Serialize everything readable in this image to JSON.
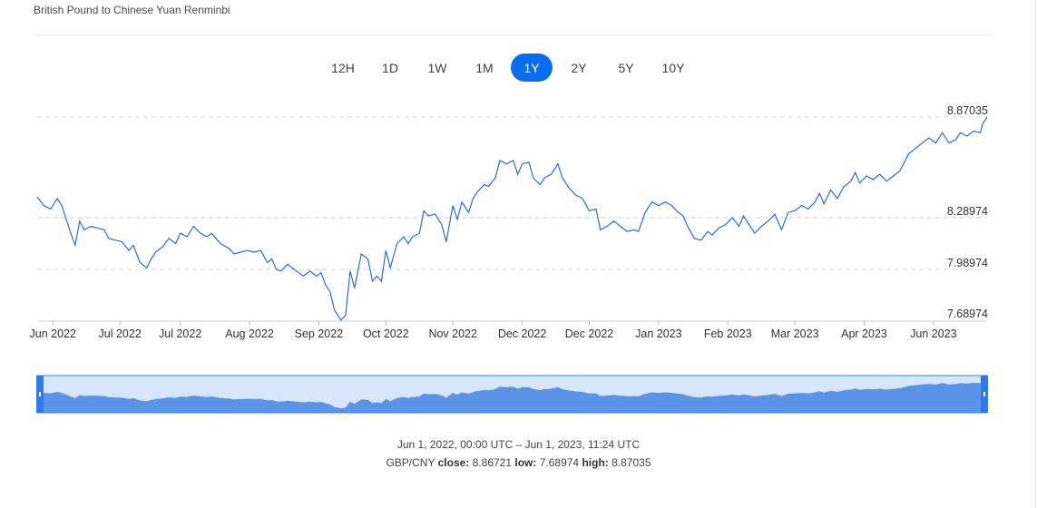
{
  "header": {
    "title": "British Pound to Chinese Yuan Renminbi"
  },
  "range_tabs": [
    {
      "label": "12H",
      "active": false
    },
    {
      "label": "1D",
      "active": false
    },
    {
      "label": "1W",
      "active": false
    },
    {
      "label": "1M",
      "active": false
    },
    {
      "label": "1Y",
      "active": true
    },
    {
      "label": "2Y",
      "active": false
    },
    {
      "label": "5Y",
      "active": false
    },
    {
      "label": "10Y",
      "active": false
    }
  ],
  "colors": {
    "accent": "#0a6cf0",
    "line": "#2b6cd4",
    "navigator_fill": "#5b93e8",
    "navigator_bg": "#d7e6fb"
  },
  "chart_data": {
    "type": "line",
    "series": [
      {
        "name": "GBP/CNY"
      }
    ],
    "y_ticks": [
      "7.68974",
      "7.98974",
      "8.28974",
      "8.87035"
    ],
    "y_tick_values": [
      7.68974,
      7.98974,
      8.28974,
      8.87035
    ],
    "ylim": [
      7.68974,
      8.87035
    ],
    "x_ticks": [
      "Jun 2022",
      "Jul 2022",
      "Jul 2022",
      "Aug 2022",
      "Sep 2022",
      "Oct 2022",
      "Nov 2022",
      "Dec 2022",
      "Dec 2022",
      "Jan 2023",
      "Feb 2023",
      "Mar 2023",
      "Apr 2023",
      "Jun 2023"
    ],
    "x_tick_days": [
      7,
      37,
      64,
      95,
      126,
      156,
      186,
      217,
      247,
      278,
      309,
      339,
      370,
      401
    ],
    "total_days": 425,
    "points": [
      [
        0,
        8.41
      ],
      [
        3,
        8.36
      ],
      [
        6,
        8.34
      ],
      [
        9,
        8.4
      ],
      [
        11,
        8.36
      ],
      [
        13,
        8.28
      ],
      [
        15,
        8.2
      ],
      [
        17,
        8.13
      ],
      [
        19,
        8.27
      ],
      [
        21,
        8.22
      ],
      [
        24,
        8.24
      ],
      [
        27,
        8.23
      ],
      [
        30,
        8.22
      ],
      [
        32,
        8.17
      ],
      [
        35,
        8.16
      ],
      [
        38,
        8.15
      ],
      [
        41,
        8.1
      ],
      [
        43,
        8.13
      ],
      [
        46,
        8.03
      ],
      [
        49,
        8.0
      ],
      [
        51,
        8.05
      ],
      [
        53,
        8.09
      ],
      [
        56,
        8.12
      ],
      [
        59,
        8.17
      ],
      [
        62,
        8.14
      ],
      [
        64,
        8.2
      ],
      [
        67,
        8.18
      ],
      [
        70,
        8.24
      ],
      [
        73,
        8.2
      ],
      [
        76,
        8.18
      ],
      [
        78,
        8.2
      ],
      [
        80,
        8.17
      ],
      [
        82,
        8.14
      ],
      [
        86,
        8.11
      ],
      [
        88,
        8.08
      ],
      [
        91,
        8.09
      ],
      [
        94,
        8.1
      ],
      [
        97,
        8.09
      ],
      [
        100,
        8.1
      ],
      [
        103,
        8.03
      ],
      [
        105,
        8.05
      ],
      [
        107,
        7.99
      ],
      [
        109,
        7.98
      ],
      [
        112,
        8.02
      ],
      [
        116,
        7.98
      ],
      [
        119,
        7.95
      ],
      [
        122,
        7.98
      ],
      [
        125,
        7.95
      ],
      [
        127,
        7.97
      ],
      [
        129,
        7.9
      ],
      [
        131,
        7.86
      ],
      [
        133,
        7.75
      ],
      [
        136,
        7.69
      ],
      [
        138,
        7.72
      ],
      [
        140,
        7.98
      ],
      [
        142,
        7.88
      ],
      [
        145,
        8.08
      ],
      [
        148,
        8.05
      ],
      [
        150,
        7.92
      ],
      [
        152,
        7.95
      ],
      [
        154,
        7.92
      ],
      [
        156,
        8.1
      ],
      [
        158,
        8.0
      ],
      [
        161,
        8.14
      ],
      [
        164,
        8.18
      ],
      [
        166,
        8.14
      ],
      [
        168,
        8.18
      ],
      [
        171,
        8.2
      ],
      [
        173,
        8.33
      ],
      [
        175,
        8.3
      ],
      [
        178,
        8.31
      ],
      [
        181,
        8.25
      ],
      [
        183,
        8.15
      ],
      [
        186,
        8.36
      ],
      [
        188,
        8.28
      ],
      [
        190,
        8.38
      ],
      [
        193,
        8.32
      ],
      [
        195,
        8.4
      ],
      [
        197,
        8.44
      ],
      [
        200,
        8.48
      ],
      [
        202,
        8.47
      ],
      [
        205,
        8.52
      ],
      [
        207,
        8.62
      ],
      [
        210,
        8.6
      ],
      [
        213,
        8.62
      ],
      [
        215,
        8.54
      ],
      [
        217,
        8.6
      ],
      [
        220,
        8.61
      ],
      [
        222,
        8.52
      ],
      [
        225,
        8.48
      ],
      [
        227,
        8.52
      ],
      [
        230,
        8.54
      ],
      [
        233,
        8.6
      ],
      [
        235,
        8.52
      ],
      [
        238,
        8.46
      ],
      [
        241,
        8.42
      ],
      [
        244,
        8.4
      ],
      [
        247,
        8.33
      ],
      [
        250,
        8.34
      ],
      [
        252,
        8.22
      ],
      [
        255,
        8.24
      ],
      [
        258,
        8.27
      ],
      [
        261,
        8.24
      ],
      [
        264,
        8.21
      ],
      [
        267,
        8.22
      ],
      [
        269,
        8.21
      ],
      [
        272,
        8.32
      ],
      [
        275,
        8.38
      ],
      [
        278,
        8.36
      ],
      [
        281,
        8.38
      ],
      [
        284,
        8.36
      ],
      [
        286,
        8.33
      ],
      [
        289,
        8.3
      ],
      [
        291,
        8.24
      ],
      [
        294,
        8.17
      ],
      [
        297,
        8.16
      ],
      [
        300,
        8.21
      ],
      [
        302,
        8.19
      ],
      [
        305,
        8.23
      ],
      [
        308,
        8.25
      ],
      [
        311,
        8.29
      ],
      [
        314,
        8.24
      ],
      [
        316,
        8.3
      ],
      [
        319,
        8.24
      ],
      [
        321,
        8.2
      ],
      [
        324,
        8.24
      ],
      [
        327,
        8.27
      ],
      [
        330,
        8.31
      ],
      [
        333,
        8.22
      ],
      [
        336,
        8.32
      ],
      [
        339,
        8.33
      ],
      [
        342,
        8.36
      ],
      [
        345,
        8.34
      ],
      [
        348,
        8.38
      ],
      [
        350,
        8.43
      ],
      [
        352,
        8.37
      ],
      [
        355,
        8.45
      ],
      [
        358,
        8.4
      ],
      [
        361,
        8.47
      ],
      [
        364,
        8.5
      ],
      [
        366,
        8.55
      ],
      [
        368,
        8.49
      ],
      [
        371,
        8.53
      ],
      [
        374,
        8.51
      ],
      [
        377,
        8.54
      ],
      [
        380,
        8.5
      ],
      [
        383,
        8.53
      ],
      [
        386,
        8.56
      ],
      [
        388,
        8.61
      ],
      [
        390,
        8.66
      ],
      [
        393,
        8.69
      ],
      [
        396,
        8.72
      ],
      [
        399,
        8.75
      ],
      [
        402,
        8.72
      ],
      [
        405,
        8.78
      ],
      [
        408,
        8.72
      ],
      [
        411,
        8.74
      ],
      [
        413,
        8.78
      ],
      [
        416,
        8.76
      ],
      [
        419,
        8.79
      ],
      [
        422,
        8.78
      ],
      [
        423,
        8.83
      ],
      [
        425,
        8.87
      ]
    ]
  },
  "footer": {
    "range": "Jun 1, 2022, 00:00 UTC – Jun 1, 2023, 11:24 UTC",
    "pair": "GBP/CNY",
    "close_label": "close:",
    "close": "8.86721",
    "low_label": "low:",
    "low": "7.68974",
    "high_label": "high:",
    "high": "8.87035"
  }
}
